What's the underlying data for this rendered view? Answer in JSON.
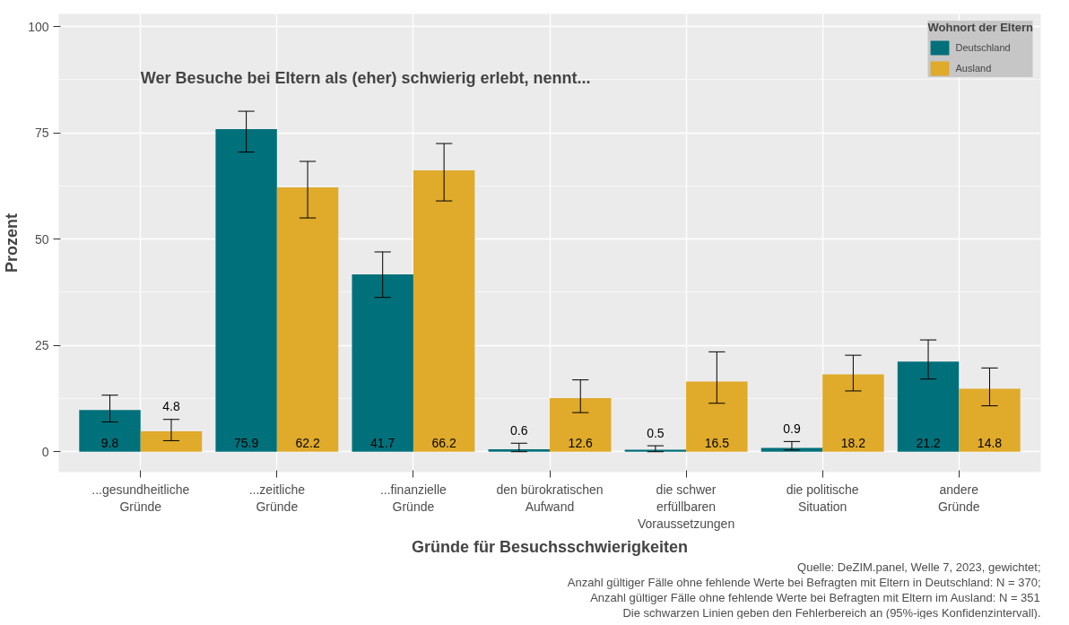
{
  "chart_data": {
    "type": "bar",
    "title": "Wer Besuche bei Eltern als (eher) schwierig erlebt, nennt...",
    "xlabel": "Gründe für Besuchsschwierigkeiten",
    "ylabel": "Prozent",
    "legend_title": "Wohnort der Eltern",
    "categories": [
      "...gesundheitliche\nGründe",
      "...zeitliche\nGründe",
      "...finanzielle\nGründe",
      "den bürokratischen\nAufwand",
      "die schwer\nerfüllbaren\nVoraussetzungen",
      "die politische\nSituation",
      "andere\nGründe"
    ],
    "series": [
      {
        "name": "Deutschland",
        "color": "#00707a",
        "values": [
          9.8,
          75.9,
          41.7,
          0.6,
          0.5,
          0.9,
          21.2
        ],
        "errors": [
          [
            7.0,
            13.3
          ],
          [
            70.5,
            80.1
          ],
          [
            36.3,
            47.0
          ],
          [
            0.0,
            2.0
          ],
          [
            0.0,
            1.4
          ],
          [
            0.4,
            2.4
          ],
          [
            17.1,
            26.3
          ]
        ]
      },
      {
        "name": "Ausland",
        "color": "#e0aa2a",
        "values": [
          4.8,
          62.2,
          66.2,
          12.6,
          16.5,
          18.2,
          14.8
        ],
        "errors": [
          [
            2.6,
            7.6
          ],
          [
            55.0,
            68.3
          ],
          [
            59.0,
            72.5
          ],
          [
            9.2,
            16.9
          ],
          [
            11.4,
            23.5
          ],
          [
            14.3,
            22.7
          ],
          [
            10.8,
            19.7
          ]
        ]
      }
    ],
    "ylim": [
      -4.8,
      103
    ],
    "yticks": [
      0,
      25,
      50,
      75,
      100
    ],
    "grid": true,
    "legend": "top right",
    "data_labels": true,
    "annotations": [
      "Quelle: DeZIM.panel, Welle 7, 2023, gewichtet;",
      "Anzahl gültiger Fälle ohne fehlende Werte bei Befragten mit Eltern in Deutschland: N = 370;",
      "Anzahl gültiger Fälle ohne fehlende Werte bei Befragten mit Eltern im Ausland: N = 351",
      "Die schwarzen Linien geben den Fehlerbereich an (95%-iges Konfidenzintervall)."
    ]
  }
}
